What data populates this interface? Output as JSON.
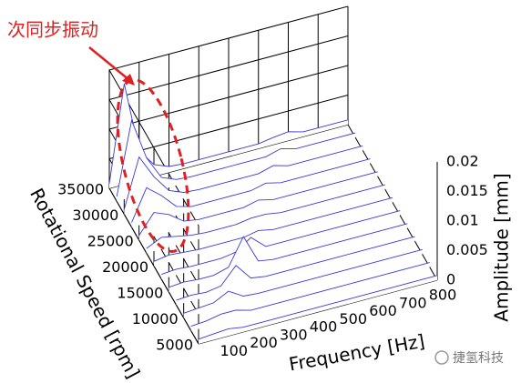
{
  "chart_data": {
    "type": "waterfall",
    "annotation": "次同步振动",
    "x_label": "Frequency [Hz]",
    "y_label": "Rotational Speed [rpm]",
    "z_label": "Amplitude [mm]",
    "color": "#3a3ad6",
    "x": [
      0,
      50,
      100,
      150,
      200,
      250,
      300,
      350,
      400,
      450,
      500,
      550,
      600,
      650,
      700,
      750,
      800
    ],
    "xlim": [
      0,
      800
    ],
    "xticks": [
      100,
      200,
      300,
      400,
      500,
      600,
      700,
      800
    ],
    "ylim": [
      5000,
      35000
    ],
    "yticks": [
      5000,
      10000,
      15000,
      20000,
      25000,
      30000,
      35000
    ],
    "zlim": [
      0,
      0.02
    ],
    "zticks": [
      0,
      0.005,
      0.01,
      0.015,
      0.02
    ],
    "series": [
      {
        "y": 35000,
        "values": [
          0.0008,
          0.017,
          0.005,
          0.002,
          0.001,
          0.0008,
          0.0008,
          0.0008,
          0.0008,
          0.0008,
          0.0008,
          0.0012,
          0.0015,
          0.0008,
          0.0008,
          0.0008,
          0.0008
        ]
      },
      {
        "y": 32500,
        "values": [
          0.0008,
          0.013,
          0.006,
          0.002,
          0.001,
          0.0008,
          0.0008,
          0.0008,
          0.0008,
          0.0008,
          0.0008,
          0.0015,
          0.0008,
          0.0008,
          0.0008,
          0.0008,
          0.0008
        ]
      },
      {
        "y": 30000,
        "values": [
          0.0008,
          0.009,
          0.005,
          0.002,
          0.001,
          0.0008,
          0.0008,
          0.0008,
          0.0008,
          0.0008,
          0.0015,
          0.0008,
          0.0008,
          0.0008,
          0.0008,
          0.0008,
          0.0008
        ]
      },
      {
        "y": 27500,
        "values": [
          0.0008,
          0.006,
          0.004,
          0.0015,
          0.0008,
          0.0008,
          0.0008,
          0.0008,
          0.0008,
          0.0014,
          0.0008,
          0.0008,
          0.0008,
          0.0008,
          0.0008,
          0.0008,
          0.0008
        ]
      },
      {
        "y": 25000,
        "values": [
          0.0008,
          0.004,
          0.003,
          0.0012,
          0.0008,
          0.0008,
          0.0008,
          0.0008,
          0.0014,
          0.0008,
          0.0008,
          0.0008,
          0.0008,
          0.0008,
          0.0008,
          0.0008,
          0.0008
        ]
      },
      {
        "y": 22500,
        "values": [
          0.0008,
          0.002,
          0.0015,
          0.001,
          0.0008,
          0.0008,
          0.0008,
          0.0012,
          0.0012,
          0.0008,
          0.0008,
          0.0008,
          0.0008,
          0.0008,
          0.0008,
          0.0008,
          0.0008
        ]
      },
      {
        "y": 20000,
        "values": [
          0.0008,
          0.0012,
          0.001,
          0.0008,
          0.0008,
          0.0008,
          0.0008,
          0.0013,
          0.0008,
          0.0008,
          0.0008,
          0.0008,
          0.0008,
          0.0008,
          0.0008,
          0.0008,
          0.0008
        ]
      },
      {
        "y": 17500,
        "values": [
          0.0008,
          0.001,
          0.0008,
          0.0008,
          0.0008,
          0.0012,
          0.003,
          0.0008,
          0.0008,
          0.0008,
          0.0008,
          0.0008,
          0.0008,
          0.0008,
          0.0008,
          0.0008,
          0.0008
        ]
      },
      {
        "y": 15000,
        "values": [
          0.0008,
          0.001,
          0.0008,
          0.0008,
          0.0015,
          0.006,
          0.0012,
          0.0008,
          0.0008,
          0.0008,
          0.0008,
          0.0008,
          0.0008,
          0.0008,
          0.0008,
          0.0008,
          0.0008
        ]
      },
      {
        "y": 12500,
        "values": [
          0.0008,
          0.001,
          0.0008,
          0.0012,
          0.004,
          0.0012,
          0.0008,
          0.0008,
          0.0008,
          0.0008,
          0.0008,
          0.0008,
          0.0008,
          0.0008,
          0.0008,
          0.0008,
          0.0008
        ]
      },
      {
        "y": 10000,
        "values": [
          0.0008,
          0.001,
          0.0012,
          0.0025,
          0.001,
          0.0008,
          0.0008,
          0.0008,
          0.0008,
          0.0008,
          0.0008,
          0.0008,
          0.0008,
          0.0008,
          0.0008,
          0.0008,
          0.0008
        ]
      },
      {
        "y": 7500,
        "values": [
          0.0008,
          0.001,
          0.0015,
          0.0015,
          0.0008,
          0.0008,
          0.0008,
          0.0008,
          0.0008,
          0.0008,
          0.0008,
          0.0008,
          0.0008,
          0.0008,
          0.0008,
          0.0008,
          0.0008
        ]
      },
      {
        "y": 5000,
        "values": [
          0.0008,
          0.001,
          0.0012,
          0.0008,
          0.0008,
          0.0008,
          0.0008,
          0.0008,
          0.0008,
          0.0008,
          0.0008,
          0.0008,
          0.0008,
          0.0008,
          0.0008,
          0.0008,
          0.0008
        ]
      }
    ]
  },
  "watermark": "捷氢科技"
}
